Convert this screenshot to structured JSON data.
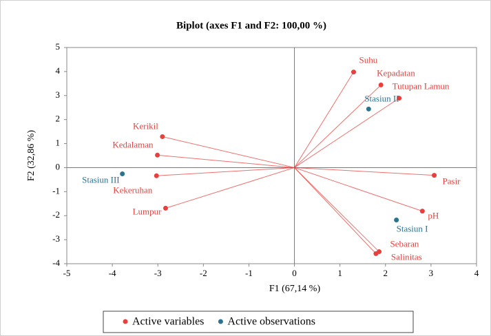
{
  "chart_data": {
    "type": "scatter",
    "title": "Biplot (axes F1 and F2: 100,00 %)",
    "xlabel": "F1 (67,14 %)",
    "ylabel": "F2 (32,86 %)",
    "xlim": [
      -5,
      4
    ],
    "ylim": [
      -4,
      5
    ],
    "xticks": [
      -5,
      -4,
      -3,
      -2,
      -1,
      0,
      1,
      2,
      3,
      4
    ],
    "yticks": [
      -4,
      -3,
      -2,
      -1,
      0,
      1,
      2,
      3,
      4,
      5
    ],
    "legend": "bottom",
    "series": [
      {
        "name": "Active variables",
        "color": "#e8403e",
        "vectors": true,
        "labels": [
          "Suhu",
          "Kepadatan",
          "Tutupan Lamun",
          "Pasir",
          "pH",
          "Sebaran",
          "Salinitas",
          "Lumpur",
          "Kekeruhan",
          "Kedalaman",
          "Kerikil"
        ],
        "x": [
          1.3,
          1.9,
          2.3,
          3.07,
          2.81,
          1.86,
          1.79,
          -2.83,
          -3.03,
          -3.01,
          -2.9
        ],
        "values": [
          3.98,
          3.44,
          2.89,
          -0.32,
          -1.81,
          -3.5,
          -3.58,
          -1.69,
          -0.34,
          0.52,
          1.29
        ]
      },
      {
        "name": "Active observations",
        "color": "#2b7390",
        "vectors": false,
        "labels": [
          "Stasiun II",
          "Stasiun III",
          "Stasiun I"
        ],
        "x": [
          1.63,
          -3.78,
          2.24
        ],
        "values": [
          2.44,
          -0.26,
          -2.18
        ]
      }
    ]
  }
}
